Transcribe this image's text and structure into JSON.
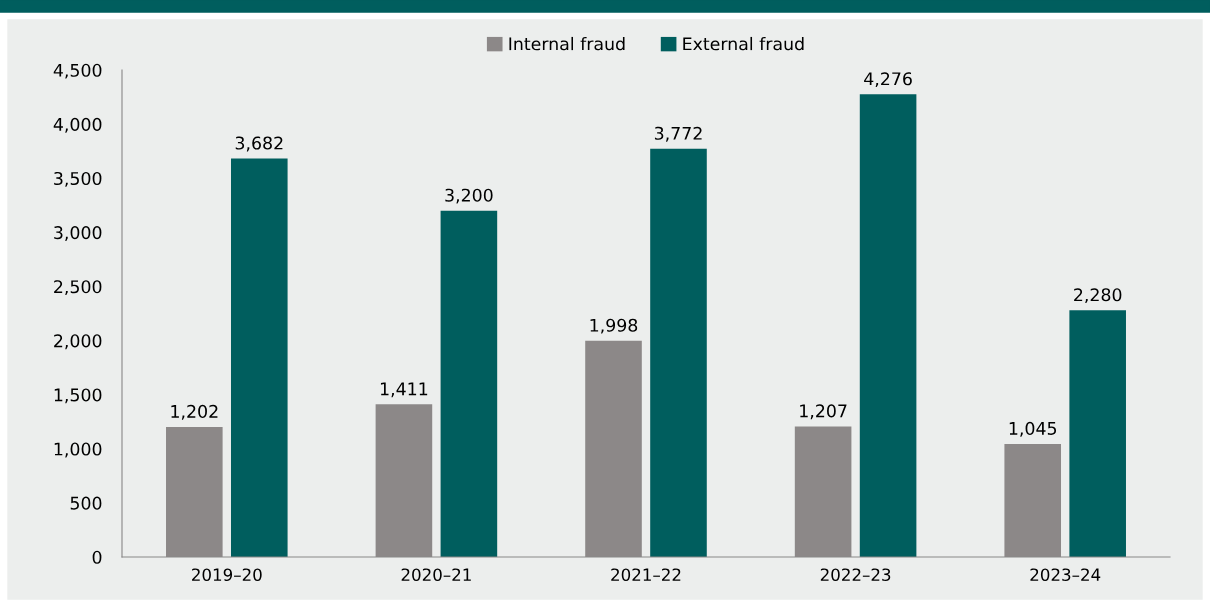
{
  "chart_data": {
    "type": "bar",
    "categories": [
      "2019–20",
      "2020–21",
      "2021–22",
      "2022–23",
      "2023–24"
    ],
    "series": [
      {
        "name": "Internal fraud",
        "color": "#8c8888",
        "values": [
          1202,
          1411,
          1998,
          1207,
          1045
        ],
        "value_labels": [
          "1,202",
          "1,411",
          "1,998",
          "1,207",
          "1,045"
        ]
      },
      {
        "name": "External fraud",
        "color": "#005e5e",
        "values": [
          3682,
          3200,
          3772,
          4276,
          2280
        ],
        "value_labels": [
          "3,682",
          "3,200",
          "3,772",
          "4,276",
          "2,280"
        ]
      }
    ],
    "ylim": [
      0,
      4500
    ],
    "yticks": [
      {
        "value": 0,
        "label": "0"
      },
      {
        "value": 500,
        "label": "500"
      },
      {
        "value": 1000,
        "label": "1,000"
      },
      {
        "value": 1500,
        "label": "1,500"
      },
      {
        "value": 2000,
        "label": "2,000"
      },
      {
        "value": 2500,
        "label": "2,500"
      },
      {
        "value": 3000,
        "label": "3,000"
      },
      {
        "value": 3500,
        "label": "3,500"
      },
      {
        "value": 4000,
        "label": "4,000"
      },
      {
        "value": 4500,
        "label": "4,500"
      }
    ],
    "grid": false,
    "legend": "top"
  }
}
